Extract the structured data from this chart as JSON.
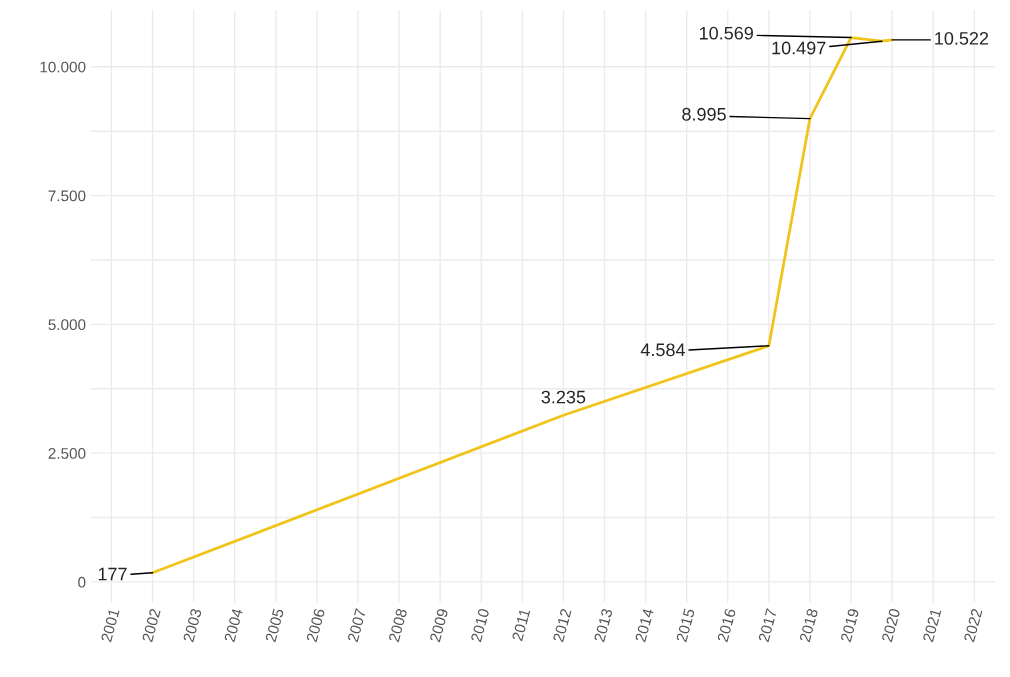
{
  "chart_data": {
    "type": "line",
    "x": [
      2002,
      2012,
      2017,
      2018,
      2019,
      2019.75,
      2020
    ],
    "series": [
      {
        "color": "#f0c419",
        "values": [
          177,
          3235,
          4584,
          8995,
          10569,
          10497,
          10522
        ]
      }
    ],
    "annotations": [
      {
        "text": "177",
        "x": 2002,
        "y": 177
      },
      {
        "text": "3.235",
        "x": 2012,
        "y": 3235
      },
      {
        "text": "4.584",
        "x": 2017,
        "y": 4584
      },
      {
        "text": "8.995",
        "x": 2018,
        "y": 8995
      },
      {
        "text": "10.569",
        "x": 2019,
        "y": 10569
      },
      {
        "text": "10.497",
        "x": 2019.75,
        "y": 10497
      },
      {
        "text": "10.522",
        "x": 2020,
        "y": 10522
      }
    ],
    "xlim": [
      2000.5,
      2022.5
    ],
    "xticks": [
      2001,
      2002,
      2003,
      2004,
      2005,
      2006,
      2007,
      2008,
      2009,
      2010,
      2011,
      2012,
      2013,
      2014,
      2015,
      2016,
      2017,
      2018,
      2019,
      2020,
      2021,
      2022
    ],
    "ylim": [
      -400,
      11100
    ],
    "yticks": [
      {
        "value": 0,
        "label": "0"
      },
      {
        "value": 1250,
        "label": null
      },
      {
        "value": 2500,
        "label": "2.500"
      },
      {
        "value": 3750,
        "label": null
      },
      {
        "value": 5000,
        "label": "5.000"
      },
      {
        "value": 6250,
        "label": null
      },
      {
        "value": 7500,
        "label": "7.500"
      },
      {
        "value": 8750,
        "label": null
      },
      {
        "value": 10000,
        "label": "10.000"
      }
    ],
    "grid": true,
    "marker": "none",
    "line_style": "solid"
  }
}
